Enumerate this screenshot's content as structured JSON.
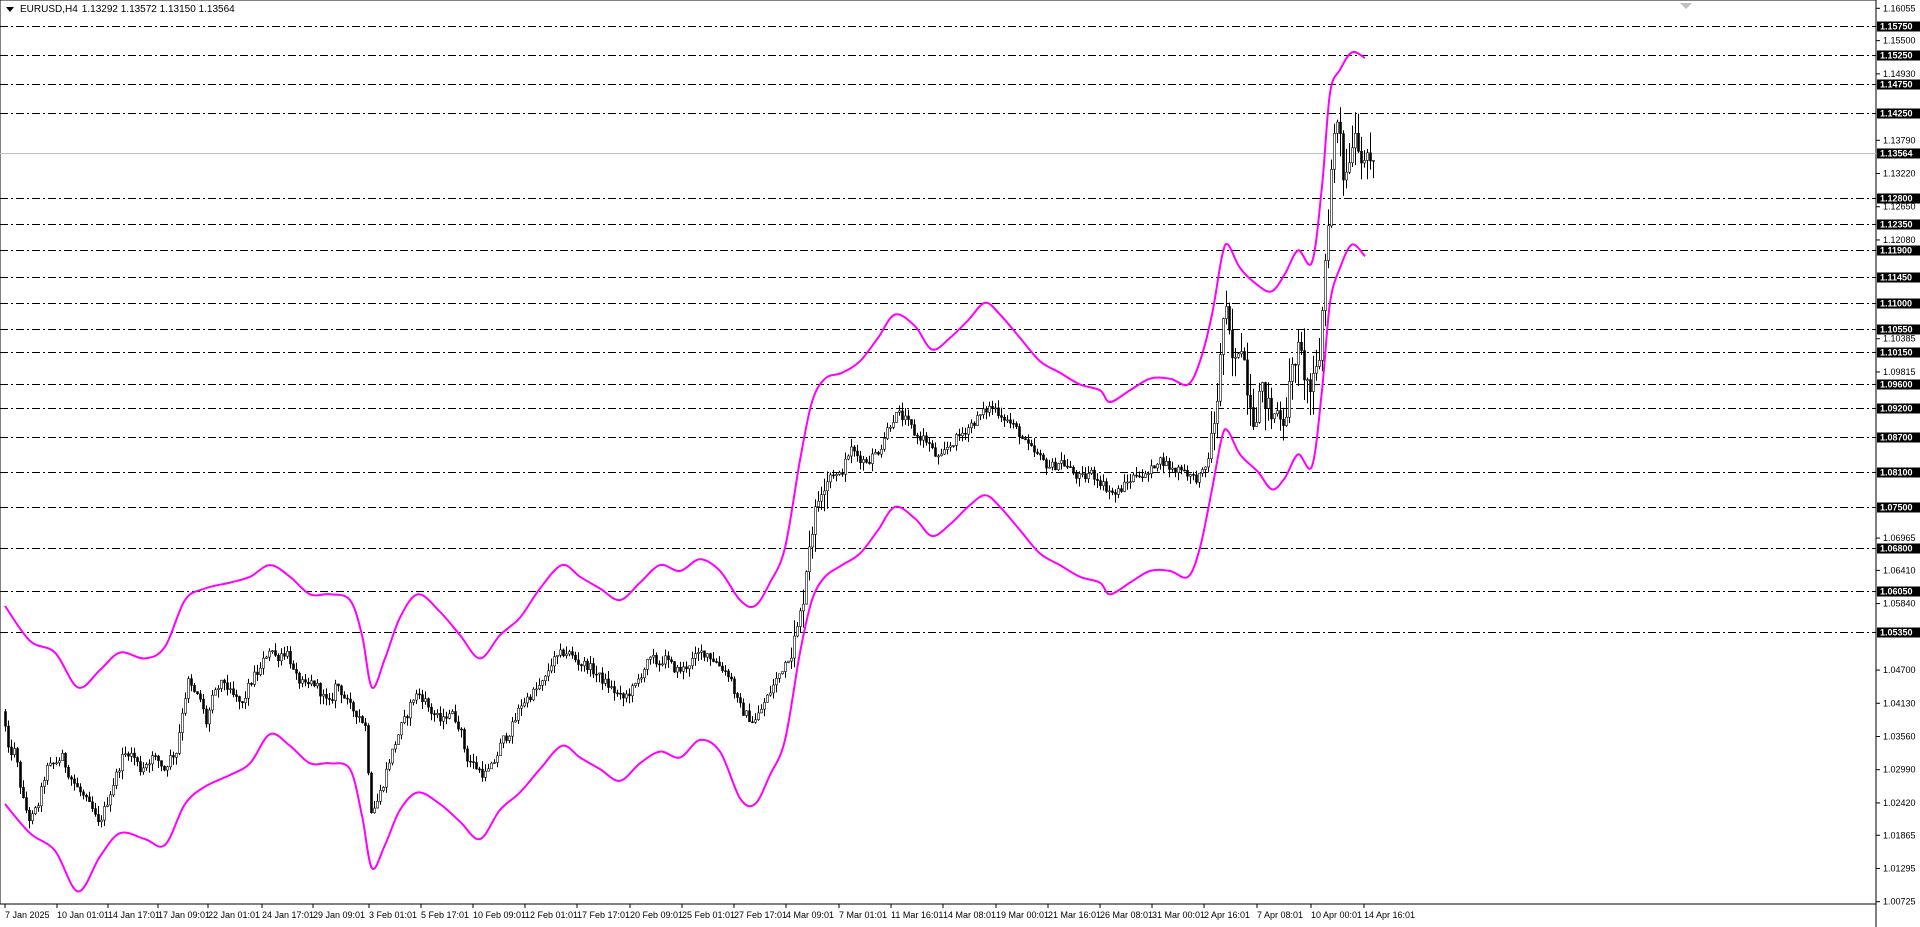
{
  "header": {
    "symbol": "EURUSD,H4",
    "ohlc": "1.13292 1.13572 1.13150 1.13564"
  },
  "colors": {
    "background": "#ffffff",
    "candles": "#000000",
    "bands": "#ff00ff",
    "levels": "#000000",
    "current_price_line": "#c0c0c0"
  },
  "icons": [
    "dropdown-triangle-icon",
    "scroll-marker-icon"
  ],
  "current_price": "1.13564",
  "chart_data": {
    "type": "candlestick",
    "title": "EURUSD,H4",
    "ylim": [
      1.0072,
      1.1606
    ],
    "price_ticks": [
      "1.16055",
      "1.15500",
      "1.14930",
      "1.13790",
      "1.13220",
      "1.12650",
      "1.12080",
      "1.10385",
      "1.09815",
      "1.06965",
      "1.06410",
      "1.05840",
      "1.04700",
      "1.04130",
      "1.03560",
      "1.02990",
      "1.02420",
      "1.01865",
      "1.01295",
      "1.00725"
    ],
    "levels": [
      "1.15750",
      "1.15250",
      "1.14750",
      "1.14250",
      "1.12800",
      "1.12350",
      "1.11900",
      "1.11450",
      "1.11000",
      "1.10550",
      "1.10150",
      "1.09600",
      "1.09200",
      "1.08700",
      "1.08100",
      "1.07500",
      "1.06800",
      "1.06050",
      "1.05350"
    ],
    "time_labels": [
      "7 Jan 2025",
      "10 Jan 01:01",
      "14 Jan 17:01",
      "17 Jan 09:01",
      "22 Jan 01:01",
      "24 Jan 17:01",
      "29 Jan 09:01",
      "3 Feb 01:01",
      "5 Feb 17:01",
      "10 Feb 09:01",
      "12 Feb 01:01",
      "17 Feb 17:01",
      "20 Feb 09:01",
      "25 Feb 01:01",
      "27 Feb 17:01",
      "4 Mar 09:01",
      "7 Mar 01:01",
      "11 Mar 16:01",
      "14 Mar 08:01",
      "19 Mar 00:01",
      "21 Mar 16:01",
      "26 Mar 08:01",
      "31 Mar 00:01",
      "2 Apr 16:01",
      "7 Apr 08:01",
      "10 Apr 00:01",
      "14 Apr 16:01"
    ],
    "close_path": [
      [
        0,
        1.044
      ],
      [
        8,
        1.033
      ],
      [
        15,
        1.033
      ],
      [
        22,
        1.025
      ],
      [
        30,
        1.021
      ],
      [
        38,
        1.024
      ],
      [
        46,
        1.03
      ],
      [
        54,
        1.031
      ],
      [
        62,
        1.032
      ],
      [
        69,
        1.029
      ],
      [
        76,
        1.027
      ],
      [
        84,
        1.025
      ],
      [
        92,
        1.023
      ],
      [
        98,
        1.0205
      ],
      [
        104,
        1.023
      ],
      [
        110,
        1.026
      ],
      [
        116,
        1.029
      ],
      [
        122,
        1.032
      ],
      [
        128,
        1.033
      ],
      [
        134,
        1.032
      ],
      [
        140,
        1.03
      ],
      [
        146,
        1.031
      ],
      [
        152,
        1.032
      ],
      [
        158,
        1.0315
      ],
      [
        164,
        1.03
      ],
      [
        170,
        1.032
      ],
      [
        176,
        1.033
      ],
      [
        182,
        1.04
      ],
      [
        188,
        1.045
      ],
      [
        194,
        1.043
      ],
      [
        200,
        1.042
      ],
      [
        206,
        1.038
      ],
      [
        212,
        1.042
      ],
      [
        218,
        1.044
      ],
      [
        224,
        1.045
      ],
      [
        230,
        1.043
      ],
      [
        236,
        1.042
      ],
      [
        242,
        1.041
      ],
      [
        248,
        1.044
      ],
      [
        254,
        1.046
      ],
      [
        260,
        1.047
      ],
      [
        264,
        1.049
      ],
      [
        270,
        1.051
      ],
      [
        276,
        1.049
      ],
      [
        282,
        1.05
      ],
      [
        288,
        1.05
      ],
      [
        294,
        1.046
      ],
      [
        300,
        1.045
      ],
      [
        306,
        1.044
      ],
      [
        312,
        1.045
      ],
      [
        318,
        1.044
      ],
      [
        324,
        1.042
      ],
      [
        330,
        1.041
      ],
      [
        336,
        1.045
      ],
      [
        342,
        1.043
      ],
      [
        348,
        1.041
      ],
      [
        354,
        1.04
      ],
      [
        360,
        1.039
      ],
      [
        366,
        1.037
      ],
      [
        370,
        1.023
      ],
      [
        376,
        1.024
      ],
      [
        382,
        1.027
      ],
      [
        388,
        1.031
      ],
      [
        394,
        1.034
      ],
      [
        400,
        1.037
      ],
      [
        406,
        1.039
      ],
      [
        412,
        1.042
      ],
      [
        418,
        1.043
      ],
      [
        424,
        1.042
      ],
      [
        430,
        1.04
      ],
      [
        436,
        1.039
      ],
      [
        442,
        1.038
      ],
      [
        448,
        1.04
      ],
      [
        454,
        1.039
      ],
      [
        460,
        1.037
      ],
      [
        466,
        1.032
      ],
      [
        472,
        1.031
      ],
      [
        478,
        1.03
      ],
      [
        484,
        1.029
      ],
      [
        490,
        1.03
      ],
      [
        496,
        1.032
      ],
      [
        502,
        1.035
      ],
      [
        508,
        1.036
      ],
      [
        514,
        1.038
      ],
      [
        520,
        1.041
      ],
      [
        526,
        1.042
      ],
      [
        532,
        1.043
      ],
      [
        538,
        1.044
      ],
      [
        544,
        1.045
      ],
      [
        550,
        1.048
      ],
      [
        556,
        1.049
      ],
      [
        562,
        1.05
      ],
      [
        568,
        1.05
      ],
      [
        574,
        1.049
      ],
      [
        580,
        1.048
      ],
      [
        586,
        1.048
      ],
      [
        592,
        1.047
      ],
      [
        598,
        1.046
      ],
      [
        604,
        1.045
      ],
      [
        610,
        1.044
      ],
      [
        616,
        1.043
      ],
      [
        622,
        1.042
      ],
      [
        628,
        1.043
      ],
      [
        634,
        1.044
      ],
      [
        640,
        1.046
      ],
      [
        646,
        1.048
      ],
      [
        652,
        1.049
      ],
      [
        658,
        1.048
      ],
      [
        664,
        1.049
      ],
      [
        670,
        1.048
      ],
      [
        676,
        1.047
      ],
      [
        682,
        1.047
      ],
      [
        688,
        1.048
      ],
      [
        694,
        1.049
      ],
      [
        700,
        1.05
      ],
      [
        706,
        1.05
      ],
      [
        712,
        1.049
      ],
      [
        718,
        1.048
      ],
      [
        724,
        1.047
      ],
      [
        730,
        1.046
      ],
      [
        736,
        1.042
      ],
      [
        742,
        1.04
      ],
      [
        748,
        1.039
      ],
      [
        754,
        1.038
      ],
      [
        760,
        1.04
      ],
      [
        766,
        1.042
      ],
      [
        772,
        1.044
      ],
      [
        778,
        1.046
      ],
      [
        784,
        1.048
      ],
      [
        790,
        1.05
      ],
      [
        796,
        1.053
      ],
      [
        802,
        1.058
      ],
      [
        808,
        1.068
      ],
      [
        814,
        1.073
      ],
      [
        820,
        1.078
      ],
      [
        826,
        1.08
      ],
      [
        832,
        1.081
      ],
      [
        838,
        1.08
      ],
      [
        844,
        1.082
      ],
      [
        850,
        1.085
      ],
      [
        856,
        1.084
      ],
      [
        862,
        1.083
      ],
      [
        868,
        1.083
      ],
      [
        874,
        1.084
      ],
      [
        880,
        1.085
      ],
      [
        886,
        1.088
      ],
      [
        892,
        1.09
      ],
      [
        898,
        1.091
      ],
      [
        904,
        1.09
      ],
      [
        910,
        1.089
      ],
      [
        916,
        1.087
      ],
      [
        922,
        1.087
      ],
      [
        928,
        1.086
      ],
      [
        934,
        1.084
      ],
      [
        940,
        1.083
      ],
      [
        946,
        1.085
      ],
      [
        952,
        1.086
      ],
      [
        958,
        1.087
      ],
      [
        964,
        1.088
      ],
      [
        970,
        1.089
      ],
      [
        976,
        1.09
      ],
      [
        982,
        1.091
      ],
      [
        988,
        1.092
      ],
      [
        994,
        1.092
      ],
      [
        1000,
        1.091
      ],
      [
        1006,
        1.09
      ],
      [
        1012,
        1.089
      ],
      [
        1018,
        1.088
      ],
      [
        1024,
        1.086
      ],
      [
        1030,
        1.085
      ],
      [
        1036,
        1.084
      ],
      [
        1042,
        1.083
      ],
      [
        1048,
        1.082
      ],
      [
        1054,
        1.082
      ],
      [
        1060,
        1.083
      ],
      [
        1066,
        1.082
      ],
      [
        1072,
        1.081
      ],
      [
        1078,
        1.08
      ],
      [
        1084,
        1.08
      ],
      [
        1090,
        1.081
      ],
      [
        1096,
        1.08
      ],
      [
        1102,
        1.079
      ],
      [
        1108,
        1.078
      ],
      [
        1114,
        1.077
      ],
      [
        1120,
        1.078
      ],
      [
        1126,
        1.079
      ],
      [
        1132,
        1.08
      ],
      [
        1138,
        1.081
      ],
      [
        1144,
        1.08
      ],
      [
        1150,
        1.081
      ],
      [
        1156,
        1.083
      ],
      [
        1162,
        1.083
      ],
      [
        1168,
        1.082
      ],
      [
        1174,
        1.081
      ],
      [
        1180,
        1.082
      ],
      [
        1186,
        1.081
      ],
      [
        1192,
        1.08
      ],
      [
        1198,
        1.08
      ],
      [
        1204,
        1.081
      ],
      [
        1210,
        1.085
      ],
      [
        1216,
        1.092
      ],
      [
        1220,
        1.1
      ],
      [
        1224,
        1.11
      ],
      [
        1228,
        1.105
      ],
      [
        1234,
        1.098
      ],
      [
        1240,
        1.105
      ],
      [
        1244,
        1.1
      ],
      [
        1248,
        1.095
      ],
      [
        1254,
        1.09
      ],
      [
        1260,
        1.095
      ],
      [
        1266,
        1.093
      ],
      [
        1272,
        1.09
      ],
      [
        1278,
        1.092
      ],
      [
        1284,
        1.09
      ],
      [
        1290,
        1.096
      ],
      [
        1296,
        1.102
      ],
      [
        1302,
        1.1
      ],
      [
        1308,
        1.095
      ],
      [
        1314,
        1.096
      ],
      [
        1320,
        1.102
      ],
      [
        1324,
        1.115
      ],
      [
        1328,
        1.125
      ],
      [
        1332,
        1.135
      ],
      [
        1336,
        1.142
      ],
      [
        1340,
        1.14
      ],
      [
        1344,
        1.13
      ],
      [
        1348,
        1.135
      ],
      [
        1352,
        1.138
      ],
      [
        1356,
        1.14
      ],
      [
        1360,
        1.136
      ],
      [
        1364,
        1.135
      ],
      [
        1368,
        1.133
      ],
      [
        1372,
        1.134
      ],
      [
        1375,
        1.1356
      ]
    ],
    "upper_band": [
      [
        5,
        1.058
      ],
      [
        30,
        1.052
      ],
      [
        55,
        1.05
      ],
      [
        78,
        1.044
      ],
      [
        100,
        1.047
      ],
      [
        120,
        1.05
      ],
      [
        145,
        1.049
      ],
      [
        165,
        1.051
      ],
      [
        185,
        1.059
      ],
      [
        205,
        1.061
      ],
      [
        230,
        1.062
      ],
      [
        250,
        1.063
      ],
      [
        270,
        1.065
      ],
      [
        290,
        1.063
      ],
      [
        310,
        1.06
      ],
      [
        330,
        1.06
      ],
      [
        350,
        1.059
      ],
      [
        362,
        1.053
      ],
      [
        372,
        1.044
      ],
      [
        385,
        1.049
      ],
      [
        400,
        1.056
      ],
      [
        418,
        1.06
      ],
      [
        440,
        1.057
      ],
      [
        460,
        1.053
      ],
      [
        480,
        1.049
      ],
      [
        500,
        1.053
      ],
      [
        520,
        1.056
      ],
      [
        540,
        1.061
      ],
      [
        562,
        1.065
      ],
      [
        580,
        1.063
      ],
      [
        600,
        1.061
      ],
      [
        620,
        1.059
      ],
      [
        640,
        1.062
      ],
      [
        660,
        1.065
      ],
      [
        680,
        1.064
      ],
      [
        700,
        1.066
      ],
      [
        720,
        1.064
      ],
      [
        740,
        1.059
      ],
      [
        755,
        1.058
      ],
      [
        770,
        1.062
      ],
      [
        785,
        1.068
      ],
      [
        800,
        1.083
      ],
      [
        812,
        1.093
      ],
      [
        825,
        1.097
      ],
      [
        842,
        1.098
      ],
      [
        860,
        1.1
      ],
      [
        878,
        1.104
      ],
      [
        895,
        1.108
      ],
      [
        915,
        1.106
      ],
      [
        932,
        1.102
      ],
      [
        950,
        1.104
      ],
      [
        968,
        1.107
      ],
      [
        985,
        1.11
      ],
      [
        1000,
        1.108
      ],
      [
        1020,
        1.104
      ],
      [
        1040,
        1.1
      ],
      [
        1060,
        1.098
      ],
      [
        1080,
        1.096
      ],
      [
        1100,
        1.095
      ],
      [
        1110,
        1.093
      ],
      [
        1130,
        1.095
      ],
      [
        1150,
        1.097
      ],
      [
        1170,
        1.097
      ],
      [
        1188,
        1.096
      ],
      [
        1200,
        1.1
      ],
      [
        1212,
        1.108
      ],
      [
        1222,
        1.118
      ],
      [
        1228,
        1.12
      ],
      [
        1240,
        1.116
      ],
      [
        1258,
        1.113
      ],
      [
        1272,
        1.112
      ],
      [
        1285,
        1.115
      ],
      [
        1298,
        1.119
      ],
      [
        1312,
        1.117
      ],
      [
        1322,
        1.13
      ],
      [
        1330,
        1.146
      ],
      [
        1340,
        1.15
      ],
      [
        1352,
        1.153
      ],
      [
        1365,
        1.152
      ]
    ],
    "lower_band": [
      [
        5,
        1.024
      ],
      [
        30,
        1.019
      ],
      [
        55,
        1.016
      ],
      [
        78,
        1.009
      ],
      [
        100,
        1.015
      ],
      [
        120,
        1.019
      ],
      [
        145,
        1.018
      ],
      [
        165,
        1.017
      ],
      [
        185,
        1.024
      ],
      [
        205,
        1.027
      ],
      [
        230,
        1.029
      ],
      [
        250,
        1.031
      ],
      [
        270,
        1.036
      ],
      [
        290,
        1.034
      ],
      [
        310,
        1.031
      ],
      [
        330,
        1.031
      ],
      [
        350,
        1.03
      ],
      [
        362,
        1.022
      ],
      [
        372,
        1.013
      ],
      [
        385,
        1.017
      ],
      [
        400,
        1.023
      ],
      [
        418,
        1.026
      ],
      [
        440,
        1.024
      ],
      [
        460,
        1.021
      ],
      [
        480,
        1.018
      ],
      [
        500,
        1.023
      ],
      [
        520,
        1.026
      ],
      [
        540,
        1.03
      ],
      [
        562,
        1.034
      ],
      [
        580,
        1.032
      ],
      [
        600,
        1.03
      ],
      [
        620,
        1.028
      ],
      [
        640,
        1.031
      ],
      [
        660,
        1.033
      ],
      [
        680,
        1.032
      ],
      [
        700,
        1.035
      ],
      [
        720,
        1.033
      ],
      [
        740,
        1.025
      ],
      [
        755,
        1.024
      ],
      [
        770,
        1.029
      ],
      [
        785,
        1.035
      ],
      [
        800,
        1.05
      ],
      [
        812,
        1.059
      ],
      [
        825,
        1.063
      ],
      [
        842,
        1.065
      ],
      [
        860,
        1.067
      ],
      [
        878,
        1.071
      ],
      [
        895,
        1.075
      ],
      [
        915,
        1.073
      ],
      [
        932,
        1.07
      ],
      [
        950,
        1.072
      ],
      [
        968,
        1.075
      ],
      [
        985,
        1.077
      ],
      [
        1000,
        1.075
      ],
      [
        1020,
        1.071
      ],
      [
        1040,
        1.067
      ],
      [
        1060,
        1.065
      ],
      [
        1080,
        1.063
      ],
      [
        1100,
        1.062
      ],
      [
        1110,
        1.06
      ],
      [
        1130,
        1.062
      ],
      [
        1150,
        1.064
      ],
      [
        1170,
        1.064
      ],
      [
        1188,
        1.063
      ],
      [
        1200,
        1.068
      ],
      [
        1212,
        1.078
      ],
      [
        1222,
        1.087
      ],
      [
        1228,
        1.088
      ],
      [
        1240,
        1.084
      ],
      [
        1258,
        1.081
      ],
      [
        1272,
        1.078
      ],
      [
        1285,
        1.08
      ],
      [
        1298,
        1.084
      ],
      [
        1312,
        1.082
      ],
      [
        1322,
        1.095
      ],
      [
        1330,
        1.11
      ],
      [
        1340,
        1.116
      ],
      [
        1352,
        1.12
      ],
      [
        1365,
        1.118
      ]
    ]
  }
}
